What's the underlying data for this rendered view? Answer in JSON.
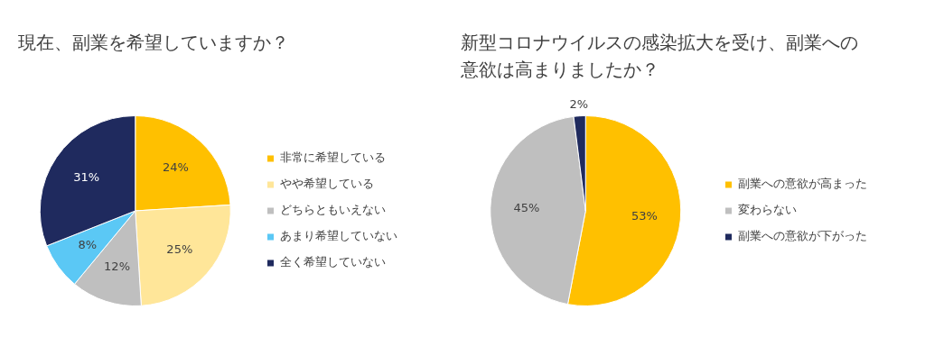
{
  "chart_data": [
    {
      "type": "pie",
      "title": "現在、副業を希望していますか？",
      "categories": [
        "非常に希望している",
        "やや希望している",
        "どちらともいえない",
        "あまり希望していない",
        "全く希望していない"
      ],
      "values": [
        24,
        25,
        12,
        8,
        31
      ],
      "value_labels": [
        "24%",
        "25%",
        "12%",
        "8%",
        "31%"
      ],
      "colors": [
        "#ffc000",
        "#ffe699",
        "#bfbfbf",
        "#5bc8f5",
        "#1f2a5e"
      ],
      "legend": "right"
    },
    {
      "type": "pie",
      "title": "新型コロナウイルスの感染拡大を受け、副業への意欲は高まりましたか？",
      "categories": [
        "副業への意欲が高まった",
        "変わらない",
        "副業への意欲が下がった"
      ],
      "values": [
        53,
        45,
        2
      ],
      "value_labels": [
        "53%",
        "45%",
        "2%"
      ],
      "colors": [
        "#ffc000",
        "#bfbfbf",
        "#1f2a5e"
      ],
      "legend": "right"
    }
  ]
}
